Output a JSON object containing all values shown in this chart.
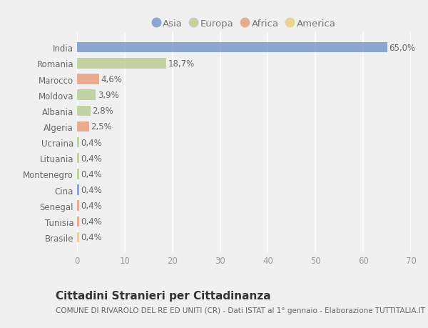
{
  "categories": [
    "India",
    "Romania",
    "Marocco",
    "Moldova",
    "Albania",
    "Algeria",
    "Ucraina",
    "Lituania",
    "Montenegro",
    "Cina",
    "Senegal",
    "Tunisia",
    "Brasile"
  ],
  "values": [
    65.0,
    18.7,
    4.6,
    3.9,
    2.8,
    2.5,
    0.4,
    0.4,
    0.4,
    0.4,
    0.4,
    0.4,
    0.4
  ],
  "labels": [
    "65,0%",
    "18,7%",
    "4,6%",
    "3,9%",
    "2,8%",
    "2,5%",
    "0,4%",
    "0,4%",
    "0,4%",
    "0,4%",
    "0,4%",
    "0,4%",
    "0,4%"
  ],
  "bar_colors": [
    "#6b8ec4",
    "#b5c98a",
    "#e8956d",
    "#b5c98a",
    "#b5c98a",
    "#e8956d",
    "#b5c98a",
    "#b5c98a",
    "#b5c98a",
    "#6b8ec4",
    "#e8956d",
    "#e8956d",
    "#e8c87a"
  ],
  "legend_labels": [
    "Asia",
    "Europa",
    "Africa",
    "America"
  ],
  "legend_colors": [
    "#6b8ec4",
    "#b5c98a",
    "#e8956d",
    "#e8c87a"
  ],
  "title": "Cittadini Stranieri per Cittadinanza",
  "subtitle": "COMUNE DI RIVAROLO DEL RE ED UNITI (CR) - Dati ISTAT al 1° gennaio - Elaborazione TUTTITALIA.IT",
  "xlim": [
    0,
    70
  ],
  "xticks": [
    0,
    10,
    20,
    30,
    40,
    50,
    60,
    70
  ],
  "plot_bg_color": "#f0f0f0",
  "fig_bg_color": "#f0f0f0",
  "bar_alpha": 0.75,
  "grid_color": "#ffffff",
  "title_fontsize": 11,
  "subtitle_fontsize": 7.5,
  "label_fontsize": 8.5,
  "tick_fontsize": 8.5,
  "legend_fontsize": 9.5,
  "ytick_color": "#666666",
  "xtick_color": "#999999",
  "label_color": "#666666"
}
